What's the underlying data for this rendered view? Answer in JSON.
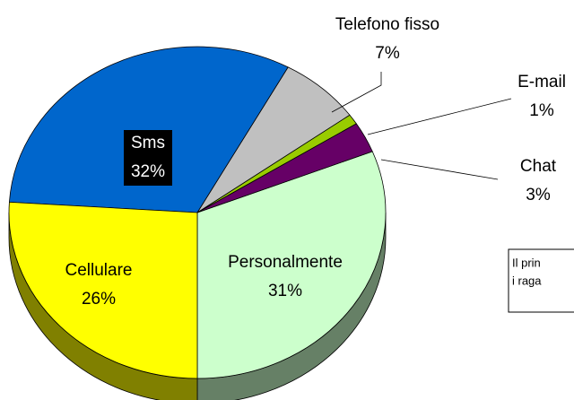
{
  "chart_data": {
    "type": "pie",
    "categories": [
      "Personalmente",
      "Chat",
      "E-mail",
      "Telefono fisso",
      "Sms",
      "Cellulare"
    ],
    "values": [
      31,
      3,
      1,
      7,
      32,
      26
    ],
    "value_labels": [
      "31%",
      "3%",
      "1%",
      "7%",
      "32%",
      "26%"
    ],
    "colors": [
      "#ccffcc",
      "#660066",
      "#99cc00",
      "#c0c0c0",
      "#0066cc",
      "#ffff00"
    ],
    "annotations": [
      "Il prin",
      "i raga"
    ]
  }
}
